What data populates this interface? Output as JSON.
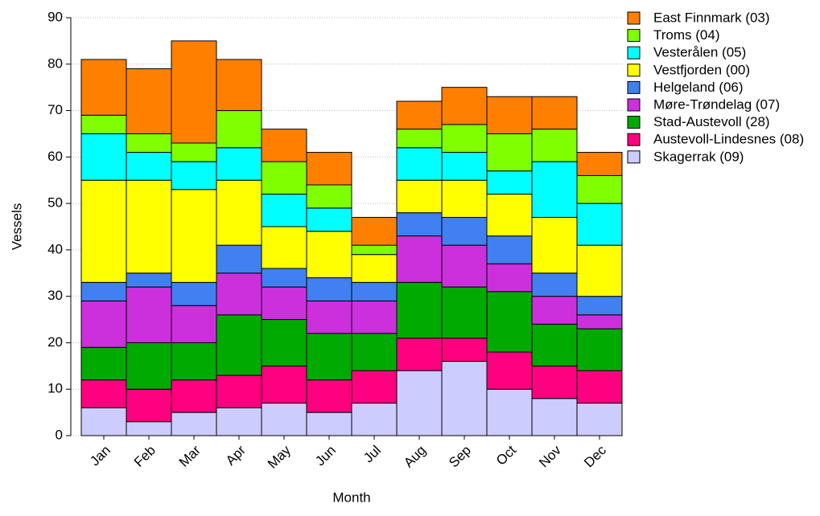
{
  "chart_data": {
    "type": "stacked-bar",
    "x_label": "Month",
    "y_label": "Vessels",
    "categories": [
      "Jan",
      "Feb",
      "Mar",
      "Apr",
      "May",
      "Jun",
      "Jul",
      "Aug",
      "Sep",
      "Oct",
      "Nov",
      "Dec"
    ],
    "series": [
      {
        "name": "East Finnmark (03)",
        "color": "#ff8000",
        "values": [
          12,
          14,
          22,
          11,
          7,
          7,
          6,
          6,
          8,
          8,
          7,
          5
        ]
      },
      {
        "name": "Troms (04)",
        "color": "#80ff00",
        "values": [
          4,
          4,
          4,
          8,
          7,
          5,
          2,
          4,
          6,
          8,
          7,
          6
        ]
      },
      {
        "name": "Vesterålen (05)",
        "color": "#00ffff",
        "values": [
          10,
          6,
          6,
          7,
          7,
          5,
          0,
          7,
          6,
          5,
          12,
          9
        ]
      },
      {
        "name": "Vestfjorden (00)",
        "color": "#ffff00",
        "values": [
          22,
          20,
          20,
          14,
          9,
          10,
          6,
          7,
          8,
          9,
          12,
          11
        ]
      },
      {
        "name": "Helgeland (06)",
        "color": "#4080f0",
        "values": [
          4,
          3,
          5,
          6,
          4,
          5,
          4,
          5,
          6,
          6,
          5,
          4
        ]
      },
      {
        "name": "Møre-Trøndelag (07)",
        "color": "#cc30dd",
        "values": [
          10,
          12,
          8,
          9,
          7,
          7,
          7,
          10,
          9,
          6,
          6,
          3
        ]
      },
      {
        "name": "Stad-Austevoll (28)",
        "color": "#00aa00",
        "values": [
          7,
          10,
          8,
          13,
          10,
          10,
          8,
          12,
          11,
          13,
          9,
          9
        ]
      },
      {
        "name": "Austevoll-Lindesnes (08)",
        "color": "#ff0080",
        "values": [
          6,
          7,
          7,
          7,
          8,
          7,
          7,
          7,
          5,
          8,
          7,
          7
        ]
      },
      {
        "name": "Skagerrak (09)",
        "color": "#ccccff",
        "values": [
          6,
          3,
          5,
          6,
          7,
          5,
          7,
          14,
          16,
          10,
          8,
          7
        ]
      }
    ],
    "ylim": [
      0,
      90
    ],
    "yticks": [
      0,
      10,
      20,
      30,
      40,
      50,
      60,
      70,
      80,
      90
    ],
    "grid": true,
    "legend": "upper right outside"
  }
}
